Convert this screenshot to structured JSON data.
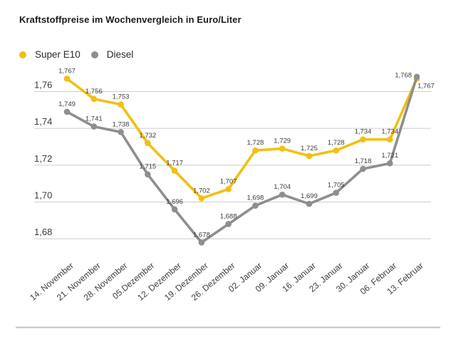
{
  "title": "Kraftstoffpreise im Wochenvergleich in Euro/Liter",
  "legend": {
    "items": [
      {
        "label": "Super E10",
        "color": "#F1C013"
      },
      {
        "label": "Diesel",
        "color": "#8E8E8E"
      }
    ]
  },
  "chart_data": {
    "type": "line",
    "title": "Kraftstoffpreise im Wochenvergleich in Euro/Liter",
    "xlabel": "",
    "ylabel": "Euro/Liter",
    "categories": [
      "14. November",
      "21. November",
      "28. November",
      "05.Dezember",
      "12. Dezember",
      "19. Dezember",
      "26. Dezember",
      "02. Januar",
      "09. Januar",
      "16. Januar",
      "23. Januar",
      "30. Januar",
      "06. Februar",
      "13. Februar"
    ],
    "series": [
      {
        "name": "Super E10",
        "color": "#F1C013",
        "values": [
          1.767,
          1.756,
          1.753,
          1.732,
          1.717,
          1.702,
          1.707,
          1.728,
          1.729,
          1.725,
          1.728,
          1.734,
          1.734,
          1.767
        ]
      },
      {
        "name": "Diesel",
        "color": "#8E8E8E",
        "values": [
          1.749,
          1.741,
          1.738,
          1.715,
          1.696,
          1.678,
          1.688,
          1.698,
          1.704,
          1.699,
          1.705,
          1.718,
          1.721,
          1.768
        ]
      }
    ],
    "yticks": [
      1.76,
      1.74,
      1.72,
      1.7,
      1.68
    ],
    "ylim": [
      1.672,
      1.775
    ],
    "decimal_separator": ",",
    "value_decimals": 3,
    "tick_decimals": 2,
    "grid": "horizontal",
    "legend_position": "top-left",
    "colors": {
      "gridline": "#cccccc",
      "tick_label": "#3c3c3c",
      "data_label": "#3c3c3c",
      "x_label": "#3e3e3e",
      "divider": "#c2c2c2"
    }
  }
}
